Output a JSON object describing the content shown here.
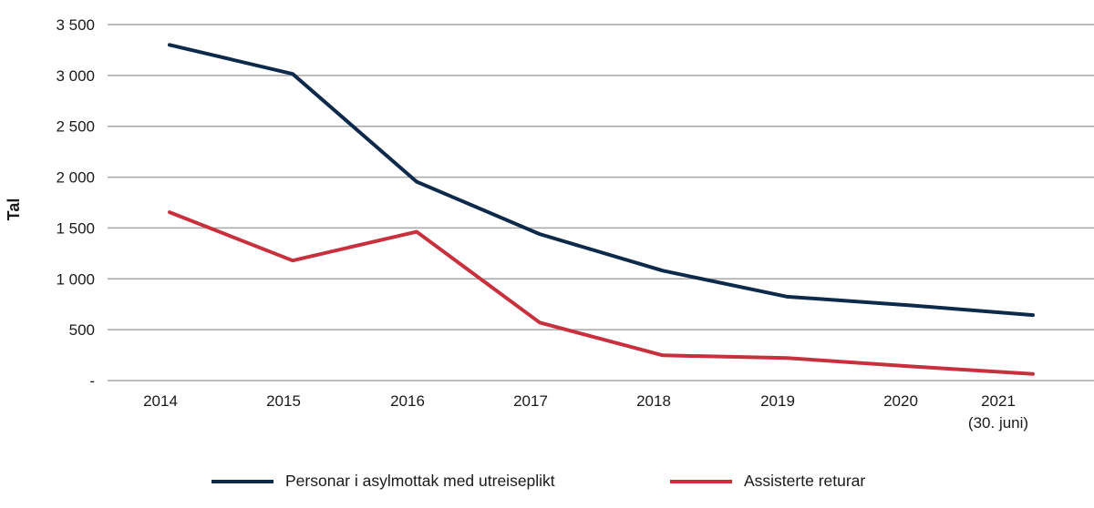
{
  "chart_data": {
    "type": "line",
    "categories": [
      "2014",
      "2015",
      "2016",
      "2017",
      "2018",
      "2019",
      "2020",
      "2021\n(30. juni)"
    ],
    "category_labels": [
      [
        "2014"
      ],
      [
        "2015"
      ],
      [
        "2016"
      ],
      [
        "2017"
      ],
      [
        "2018"
      ],
      [
        "2019"
      ],
      [
        "2020"
      ],
      [
        "2021",
        "(30. juni)"
      ]
    ],
    "series": [
      {
        "name": "Personar i asylmottak med utreiseplikt",
        "color": "#0d2a4a",
        "values": [
          3300,
          3015,
          1955,
          1440,
          1080,
          825,
          740,
          643
        ]
      },
      {
        "name": "Assisterte returar",
        "color": "#c8303e",
        "values": [
          1655,
          1180,
          1463,
          570,
          248,
          222,
          140,
          65
        ]
      }
    ],
    "ylabel": "Tal",
    "xlabel": "",
    "ylim": [
      0,
      3500
    ],
    "yticks": [
      0,
      500,
      1000,
      1500,
      2000,
      2500,
      3000,
      3500
    ],
    "ytick_labels": [
      "-",
      "500",
      "1 000",
      "1 500",
      "2 000",
      "2 500",
      "3 000",
      "3 500"
    ],
    "grid": "horizontal",
    "legend_position": "bottom"
  }
}
